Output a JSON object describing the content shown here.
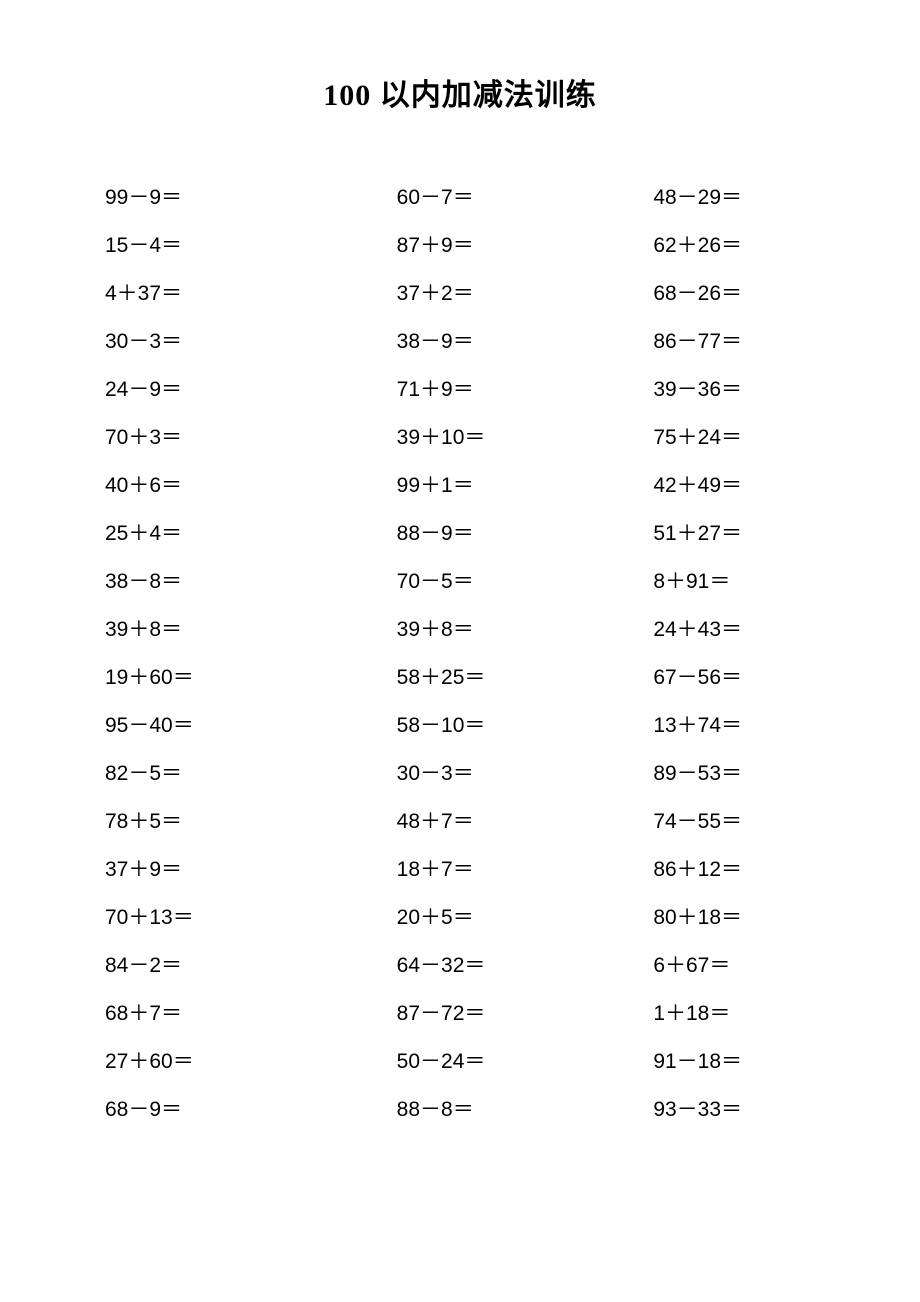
{
  "title": "100 以内加减法训练",
  "columns": [
    [
      "99－9＝",
      "15－4＝",
      "4＋37＝",
      "30－3＝",
      "24－9＝",
      "70＋3＝",
      "40＋6＝",
      "25＋4＝",
      "38－8＝",
      "39＋8＝",
      "19＋60＝",
      "95－40＝",
      "82－5＝",
      "78＋5＝",
      "37＋9＝",
      "70＋13＝",
      "84－2＝",
      "68＋7＝",
      "27＋60＝",
      "68－9＝"
    ],
    [
      "60－7＝",
      "87＋9＝",
      "37＋2＝",
      "38－9＝",
      "71＋9＝",
      "39＋10＝",
      "99＋1＝",
      "88－9＝",
      "70－5＝",
      "39＋8＝",
      "58＋25＝",
      "58－10＝",
      "30－3＝",
      "48＋7＝",
      "18＋7＝",
      "20＋5＝",
      "64－32＝",
      "87－72＝",
      "50－24＝",
      "88－8＝"
    ],
    [
      "48－29＝",
      "62＋26＝",
      "68－26＝",
      "86－77＝",
      "39－36＝",
      "75＋24＝",
      "42＋49＝",
      "51＋27＝",
      "8＋91＝",
      "24＋43＝",
      "67－56＝",
      "13＋74＝",
      "89－53＝",
      "74－55＝",
      "86＋12＝",
      "80＋18＝",
      "6＋67＝",
      "1＋18＝",
      "91－18＝",
      "93－33＝"
    ]
  ]
}
